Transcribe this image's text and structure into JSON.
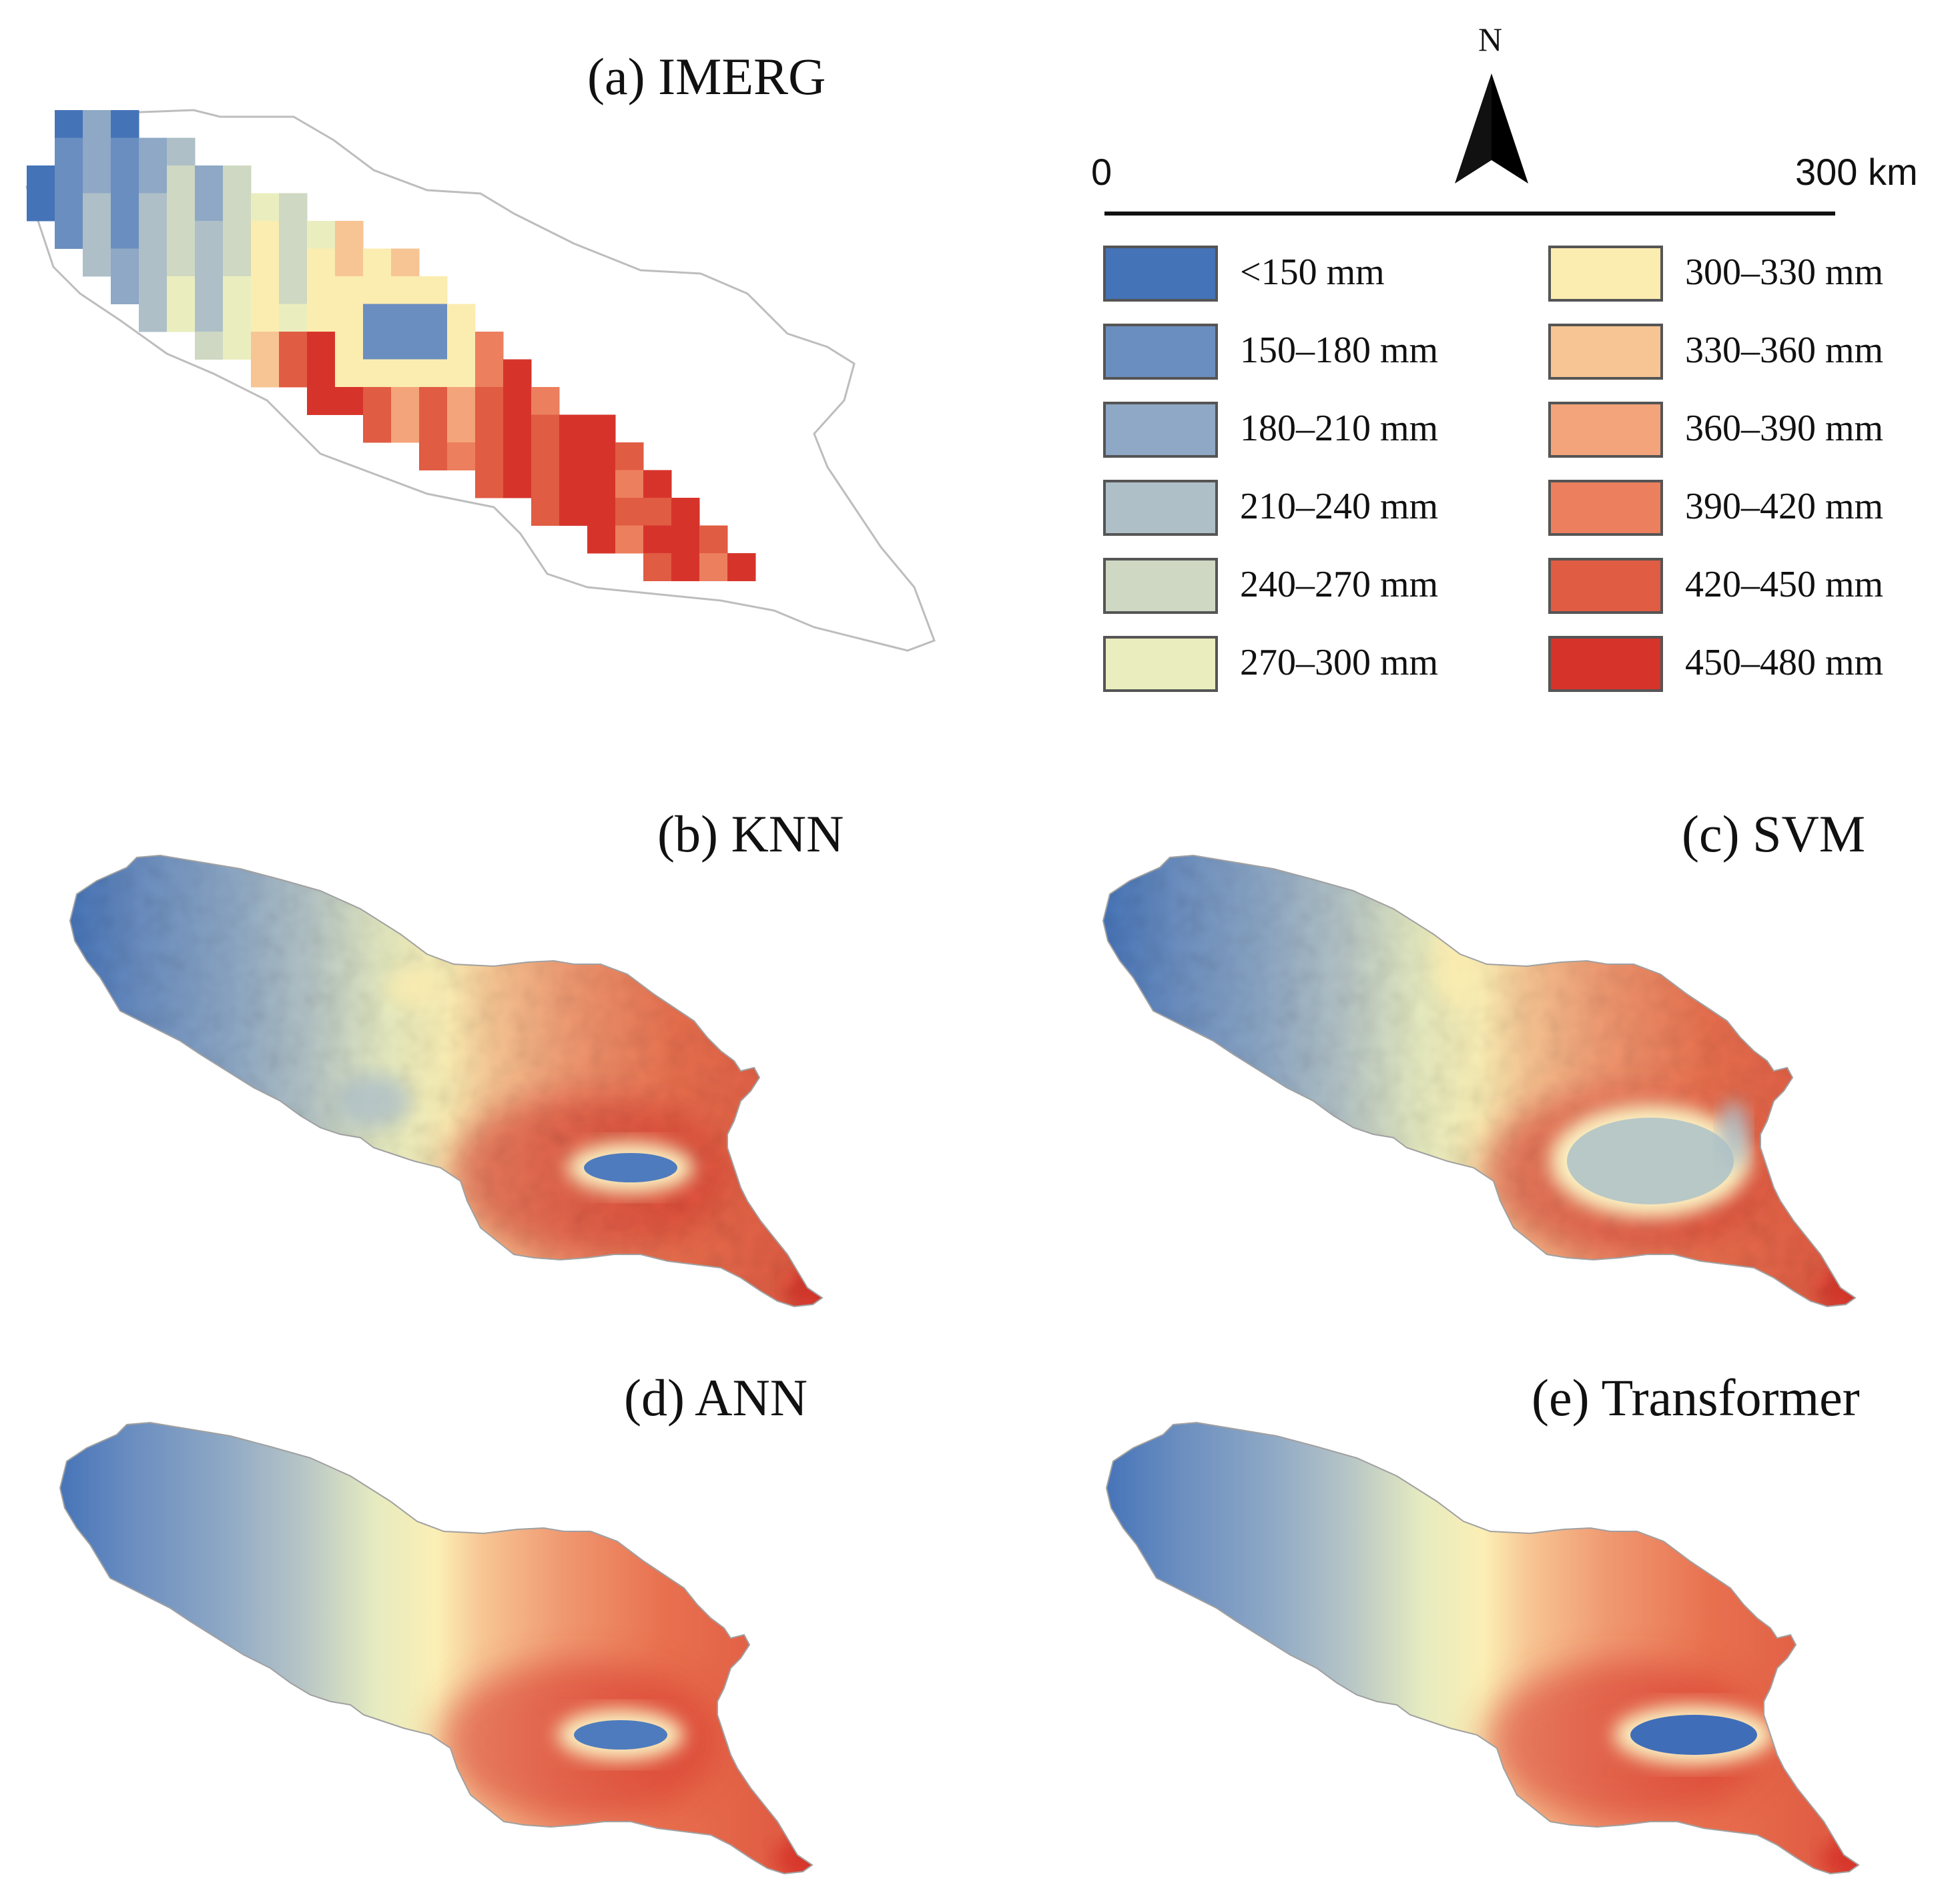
{
  "panels": {
    "a": "(a) IMERG",
    "b": "(b) KNN",
    "c": "(c) SVM",
    "d": "(d) ANN",
    "e": "(e) Transformer"
  },
  "north_label": "N",
  "scale": {
    "start": "0",
    "end": "300 km"
  },
  "legend": [
    {
      "label": "<150 mm",
      "color": "#4573b8"
    },
    {
      "label": "150–180 mm",
      "color": "#6b8ec0"
    },
    {
      "label": "180–210 mm",
      "color": "#8ea8c5"
    },
    {
      "label": "210–240 mm",
      "color": "#aebfc8"
    },
    {
      "label": "240–270 mm",
      "color": "#cfd8c2"
    },
    {
      "label": "270–300 mm",
      "color": "#eaeebf"
    },
    {
      "label": "300–330 mm",
      "color": "#fbecb0"
    },
    {
      "label": "330–360 mm",
      "color": "#f7c593"
    },
    {
      "label": "360–390 mm",
      "color": "#f4a47a"
    },
    {
      "label": "390–420 mm",
      "color": "#ec7f5e"
    },
    {
      "label": "420–450 mm",
      "color": "#e05c43"
    },
    {
      "label": "450–480 mm",
      "color": "#d6342b"
    }
  ]
}
